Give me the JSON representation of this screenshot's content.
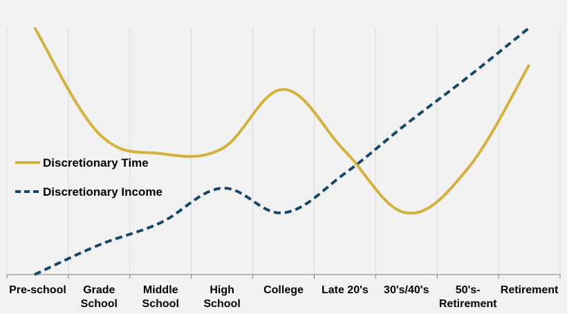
{
  "chart_data": {
    "type": "line",
    "title": "",
    "xlabel": "",
    "ylabel": "",
    "ylim": [
      0,
      100
    ],
    "grid": "vertical",
    "legend_position": "left-middle",
    "categories": [
      "Pre-school",
      "Grade School",
      "Middle School",
      "High School",
      "College",
      "Late 20's",
      "30's/40's",
      "50's-Retirement",
      "Retirement"
    ],
    "series": [
      {
        "name": "Discretionary Time",
        "color": "#d4b13a",
        "dash": "solid",
        "values": [
          100,
          57,
          49,
          51,
          75,
          50,
          25,
          43,
          85
        ]
      },
      {
        "name": "Discretionary Income",
        "color": "#13486a",
        "dash": "dashed",
        "values": [
          0,
          12,
          21,
          35,
          25,
          41,
          61,
          80,
          100
        ]
      }
    ]
  }
}
